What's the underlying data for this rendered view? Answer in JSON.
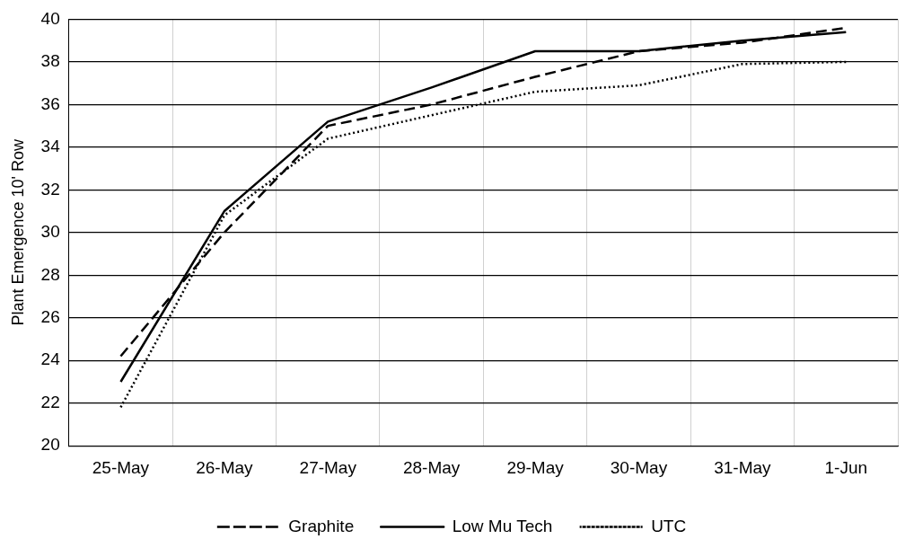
{
  "chart_data": {
    "type": "line",
    "ylabel": "Plant Emergence 10' Row",
    "categories": [
      "25-May",
      "26-May",
      "27-May",
      "28-May",
      "29-May",
      "30-May",
      "31-May",
      "1-Jun"
    ],
    "series": [
      {
        "name": "Graphite",
        "color": "#000000",
        "line_style": "dashed",
        "values": [
          24.2,
          30.0,
          35.0,
          36.0,
          37.3,
          38.5,
          38.9,
          39.6
        ]
      },
      {
        "name": "Low Mu Tech",
        "color": "#000000",
        "line_style": "solid",
        "values": [
          23.0,
          31.0,
          35.2,
          36.8,
          38.5,
          38.5,
          39.0,
          39.4
        ]
      },
      {
        "name": "UTC",
        "color": "#000000",
        "line_style": "dotted",
        "values": [
          21.8,
          30.8,
          34.4,
          35.5,
          36.6,
          36.9,
          37.9,
          38.0
        ]
      }
    ],
    "ylim": [
      20,
      40
    ],
    "yticks": [
      20,
      22,
      24,
      26,
      28,
      30,
      32,
      34,
      36,
      38,
      40
    ],
    "grid": true,
    "legend": "bottom",
    "marker": "none"
  }
}
